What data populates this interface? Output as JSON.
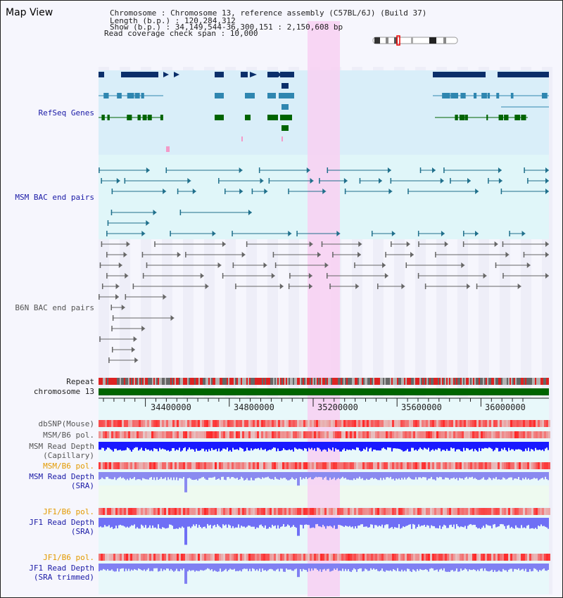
{
  "header": {
    "title": "Map View",
    "info_lines": [
      "Chromosome     : Chromosome 13, reference assembly (C57BL/6J) (Build 37)",
      "Length (b.p.) : 120,284,312",
      "  Show (b.p.) : 34,149,544-36,300,151 : 2,150,608 bp",
      "Read coverage check span : 10,000"
    ]
  },
  "tracks": {
    "refseq": "RefSeq Genes",
    "msm_bac": "MSM BAC end pairs",
    "b6n_bac": "B6N BAC end pairs",
    "repeat": "Repeat",
    "chromosome": "chromosome 13",
    "dbsnp": "dbSNP(Mouse)",
    "msm_b6_pol_1": "MSM/B6 pol.",
    "msm_depth_cap_1": "MSM Read Depth",
    "msm_depth_cap_2": "(Capillary)",
    "msm_b6_pol_2": "MSM/B6 pol.",
    "msm_depth_sra_1": "MSM Read Depth",
    "msm_depth_sra_2": "(SRA)",
    "jf1_pol_1": "JF1/B6 pol.",
    "jf1_depth_sra_1": "JF1 Read Depth",
    "jf1_depth_sra_2": "(SRA)",
    "jf1_pol_2": "JF1/B6 pol.",
    "jf1_depth_trim_1": "JF1 Read Depth",
    "jf1_depth_trim_2": "(SRA trimmed)"
  },
  "axis": {
    "ticks": [
      "34400000",
      "34800000",
      "35200000",
      "35600000",
      "36000000"
    ]
  },
  "colors": {
    "refseq_dark": "#0b2f6a",
    "refseq_teal": "#2f86b0",
    "refseq_green": "#006400",
    "msm_bac": "#1f6f8b",
    "b6n_bac": "#666666",
    "chrom_green": "#006400",
    "highlight": "#f8d0f2",
    "depth_blue": "#1a1aff"
  }
}
